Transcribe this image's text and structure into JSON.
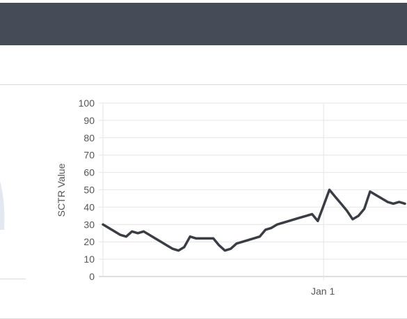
{
  "header": {
    "background": "#464c57"
  },
  "chart_data": {
    "type": "line",
    "ylabel": "SCTR Value",
    "xlabel": "",
    "ylim": [
      0,
      100
    ],
    "yticks": [
      0,
      10,
      20,
      30,
      40,
      50,
      60,
      70,
      80,
      90,
      100
    ],
    "x_ticks": [
      {
        "label": "Jan 1",
        "index": 38
      }
    ],
    "grid": true,
    "line_color": "#3a3d44",
    "series": [
      {
        "values": [
          30,
          28,
          26,
          24,
          23,
          26,
          25,
          26,
          24,
          22,
          20,
          18,
          16,
          15,
          17,
          23,
          22,
          22,
          22,
          22,
          18,
          15,
          16,
          19,
          20,
          21,
          22,
          23,
          27,
          28,
          30,
          31,
          32,
          33,
          34,
          35,
          36,
          32,
          41,
          50,
          46,
          42,
          38,
          33,
          35,
          39,
          49,
          47,
          45,
          43,
          42,
          43,
          42
        ]
      }
    ]
  }
}
